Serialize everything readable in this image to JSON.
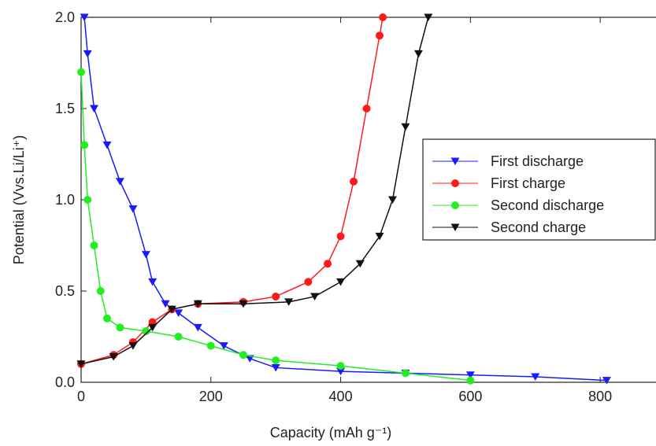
{
  "chart_data": {
    "type": "line",
    "x_label": "Capacity (mAh g⁻¹)",
    "y_label": "Potential (Vvs.Li/Li⁺)",
    "xlim": [
      0,
      886
    ],
    "ylim": [
      0,
      2
    ],
    "xticks": [
      0,
      200,
      400,
      600,
      800
    ],
    "yticks": [
      {
        "value": 0,
        "label": "0.0"
      },
      0.5,
      {
        "value": 1,
        "label": "1.0"
      },
      1.5,
      {
        "value": 2,
        "label": "2.0"
      }
    ],
    "legend": "right",
    "series": [
      {
        "name": "First discharge",
        "color": "#1a1aff",
        "marker": "triangle-down",
        "x": [
          5,
          10,
          20,
          40,
          60,
          80,
          100,
          110,
          130,
          150,
          180,
          220,
          260,
          300,
          400,
          500,
          600,
          700,
          810
        ],
        "values": [
          2.0,
          1.8,
          1.5,
          1.3,
          1.1,
          0.95,
          0.7,
          0.55,
          0.43,
          0.38,
          0.3,
          0.2,
          0.13,
          0.08,
          0.06,
          0.05,
          0.04,
          0.03,
          0.01
        ]
      },
      {
        "name": "First charge",
        "color": "#ff1a1a",
        "marker": "circle",
        "x": [
          0,
          50,
          80,
          110,
          140,
          180,
          250,
          300,
          350,
          380,
          400,
          420,
          440,
          460,
          465
        ],
        "values": [
          0.1,
          0.15,
          0.22,
          0.33,
          0.4,
          0.43,
          0.44,
          0.47,
          0.55,
          0.65,
          0.8,
          1.1,
          1.5,
          1.9,
          2.0
        ]
      },
      {
        "name": "Second discharge",
        "color": "#22ee22",
        "marker": "circle",
        "x": [
          0,
          5,
          10,
          20,
          30,
          40,
          60,
          100,
          150,
          200,
          250,
          300,
          400,
          500,
          600
        ],
        "values": [
          1.7,
          1.3,
          1.0,
          0.75,
          0.5,
          0.35,
          0.3,
          0.28,
          0.25,
          0.2,
          0.15,
          0.12,
          0.09,
          0.05,
          0.01
        ]
      },
      {
        "name": "Second charge",
        "color": "#111111",
        "marker": "triangle-down",
        "x": [
          0,
          50,
          80,
          110,
          140,
          180,
          250,
          320,
          360,
          400,
          430,
          460,
          480,
          500,
          520,
          535
        ],
        "values": [
          0.1,
          0.14,
          0.2,
          0.3,
          0.4,
          0.43,
          0.43,
          0.44,
          0.47,
          0.55,
          0.65,
          0.8,
          1.0,
          1.4,
          1.8,
          2.0
        ]
      }
    ]
  }
}
